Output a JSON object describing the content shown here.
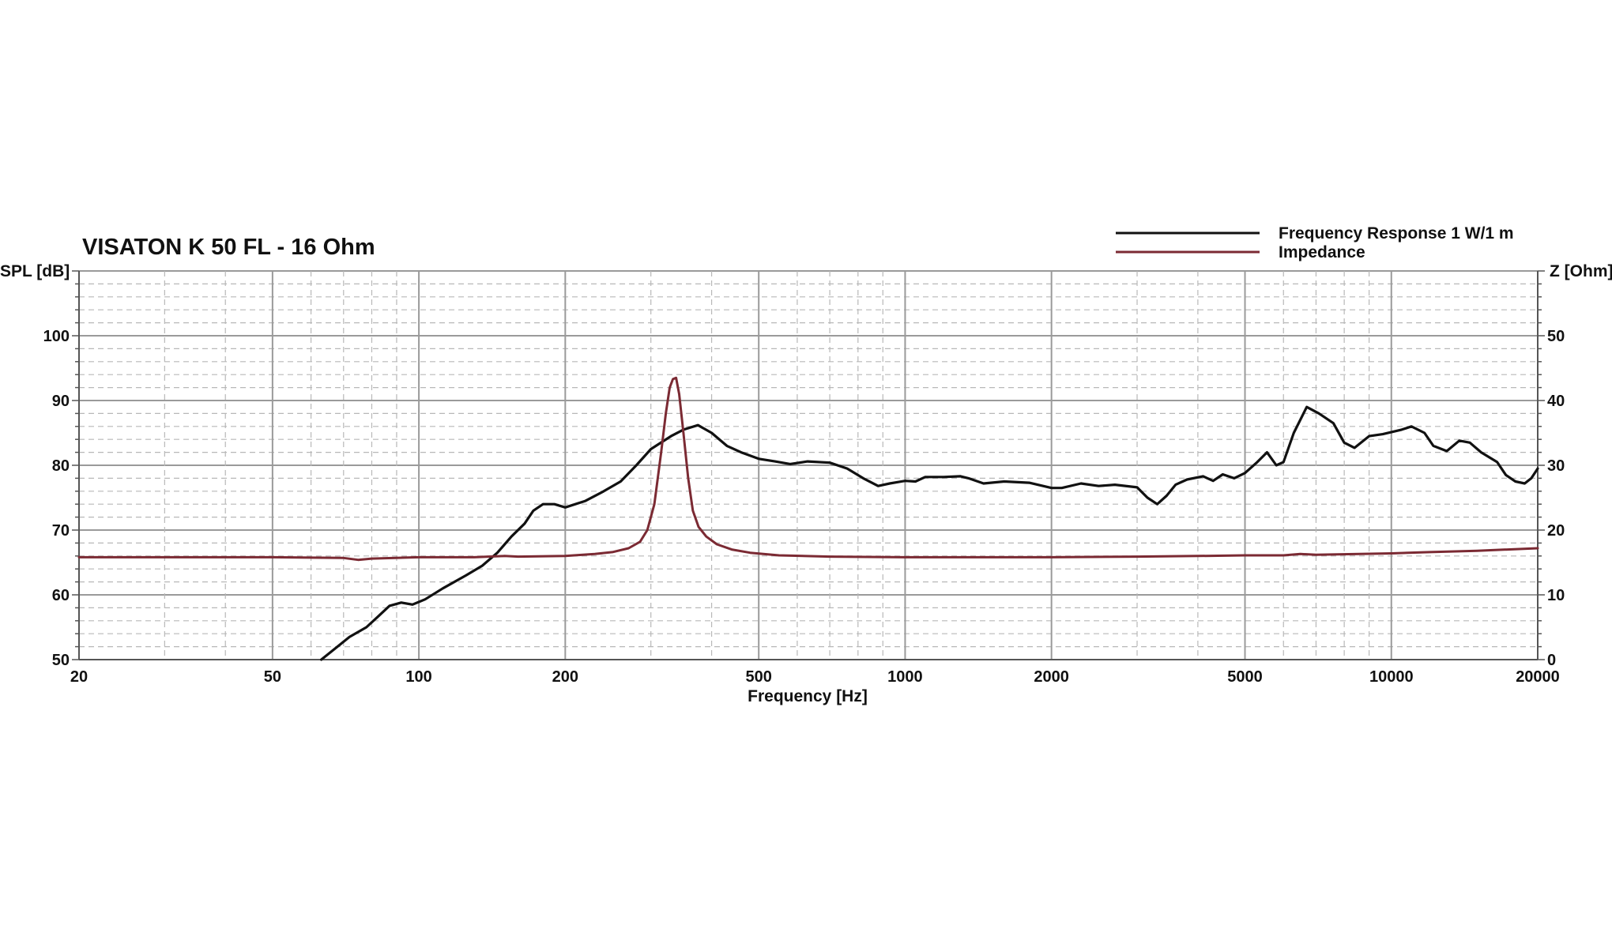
{
  "chart_data": {
    "type": "line",
    "title": "VISATON K 50 FL - 16 Ohm",
    "xlabel": "Frequency [Hz]",
    "ylabel_left": "SPL [dB]",
    "ylabel_right": "Z [Ohm]",
    "x_scale": "log",
    "xlim": [
      20,
      20000
    ],
    "ylim_left": [
      50,
      110
    ],
    "ylim_right": [
      0,
      60
    ],
    "x_ticks": [
      20,
      50,
      100,
      200,
      500,
      1000,
      2000,
      5000,
      10000,
      20000
    ],
    "x_tick_labels": [
      "20",
      "50",
      "100",
      "200",
      "500",
      "1000",
      "2000",
      "5000",
      "10000",
      "20000"
    ],
    "y_left_ticks": [
      50,
      60,
      70,
      80,
      90,
      100
    ],
    "y_left_tick_labels": [
      "50",
      "60",
      "70",
      "80",
      "90",
      "100"
    ],
    "y_right_ticks": [
      0,
      10,
      20,
      30,
      40,
      50
    ],
    "y_right_tick_labels": [
      "0",
      "10",
      "20",
      "30",
      "40",
      "50"
    ],
    "grid": true,
    "legend_position": "top-right",
    "series": [
      {
        "name": "Frequency Response 1 W/1 m",
        "axis": "left",
        "color": "#111111",
        "points": [
          [
            63,
            50
          ],
          [
            68,
            52
          ],
          [
            72,
            53.5
          ],
          [
            78,
            55
          ],
          [
            82,
            56.5
          ],
          [
            87,
            58.3
          ],
          [
            92,
            58.8
          ],
          [
            97,
            58.5
          ],
          [
            103,
            59.3
          ],
          [
            112,
            61
          ],
          [
            125,
            63
          ],
          [
            135,
            64.5
          ],
          [
            145,
            66.5
          ],
          [
            155,
            69
          ],
          [
            165,
            71
          ],
          [
            172,
            73
          ],
          [
            180,
            74
          ],
          [
            190,
            74
          ],
          [
            200,
            73.5
          ],
          [
            220,
            74.5
          ],
          [
            240,
            76
          ],
          [
            260,
            77.5
          ],
          [
            280,
            80
          ],
          [
            300,
            82.5
          ],
          [
            330,
            84.5
          ],
          [
            350,
            85.5
          ],
          [
            375,
            86.2
          ],
          [
            400,
            85
          ],
          [
            430,
            83
          ],
          [
            460,
            82
          ],
          [
            500,
            81
          ],
          [
            540,
            80.6
          ],
          [
            580,
            80.2
          ],
          [
            630,
            80.6
          ],
          [
            700,
            80.4
          ],
          [
            760,
            79.5
          ],
          [
            820,
            78
          ],
          [
            880,
            76.8
          ],
          [
            930,
            77.2
          ],
          [
            1000,
            77.6
          ],
          [
            1050,
            77.5
          ],
          [
            1100,
            78.2
          ],
          [
            1200,
            78.2
          ],
          [
            1300,
            78.3
          ],
          [
            1350,
            78
          ],
          [
            1450,
            77.2
          ],
          [
            1600,
            77.5
          ],
          [
            1800,
            77.3
          ],
          [
            2000,
            76.5
          ],
          [
            2100,
            76.5
          ],
          [
            2300,
            77.2
          ],
          [
            2500,
            76.8
          ],
          [
            2700,
            77
          ],
          [
            3000,
            76.6
          ],
          [
            3150,
            75
          ],
          [
            3300,
            74
          ],
          [
            3450,
            75.3
          ],
          [
            3600,
            77
          ],
          [
            3800,
            77.8
          ],
          [
            4100,
            78.3
          ],
          [
            4300,
            77.6
          ],
          [
            4500,
            78.6
          ],
          [
            4750,
            78
          ],
          [
            5000,
            78.8
          ],
          [
            5300,
            80.5
          ],
          [
            5550,
            82
          ],
          [
            5800,
            80
          ],
          [
            6000,
            80.5
          ],
          [
            6300,
            85
          ],
          [
            6700,
            89
          ],
          [
            7100,
            88
          ],
          [
            7600,
            86.5
          ],
          [
            8000,
            83.5
          ],
          [
            8400,
            82.7
          ],
          [
            9000,
            84.5
          ],
          [
            9600,
            84.8
          ],
          [
            10500,
            85.5
          ],
          [
            11000,
            86
          ],
          [
            11700,
            85
          ],
          [
            12200,
            83
          ],
          [
            13000,
            82.2
          ],
          [
            13800,
            83.8
          ],
          [
            14500,
            83.5
          ],
          [
            15300,
            82
          ],
          [
            16500,
            80.5
          ],
          [
            17200,
            78.5
          ],
          [
            18000,
            77.5
          ],
          [
            18800,
            77.2
          ],
          [
            19400,
            78
          ],
          [
            20000,
            79.5
          ]
        ]
      },
      {
        "name": "Impedance",
        "axis": "right",
        "color": "#7b2a33",
        "points": [
          [
            20,
            15.8
          ],
          [
            30,
            15.8
          ],
          [
            50,
            15.8
          ],
          [
            70,
            15.7
          ],
          [
            75,
            15.4
          ],
          [
            80,
            15.6
          ],
          [
            100,
            15.8
          ],
          [
            130,
            15.8
          ],
          [
            150,
            16
          ],
          [
            160,
            15.9
          ],
          [
            200,
            16
          ],
          [
            230,
            16.3
          ],
          [
            250,
            16.6
          ],
          [
            270,
            17.2
          ],
          [
            285,
            18.2
          ],
          [
            295,
            20
          ],
          [
            305,
            24
          ],
          [
            315,
            32
          ],
          [
            322,
            38
          ],
          [
            328,
            42
          ],
          [
            333,
            43.3
          ],
          [
            338,
            43.5
          ],
          [
            343,
            41
          ],
          [
            350,
            35
          ],
          [
            358,
            28
          ],
          [
            366,
            23
          ],
          [
            376,
            20.5
          ],
          [
            390,
            19
          ],
          [
            410,
            17.8
          ],
          [
            440,
            17
          ],
          [
            480,
            16.5
          ],
          [
            550,
            16.1
          ],
          [
            700,
            15.9
          ],
          [
            1000,
            15.8
          ],
          [
            1500,
            15.8
          ],
          [
            2000,
            15.8
          ],
          [
            3000,
            15.9
          ],
          [
            4000,
            16
          ],
          [
            5000,
            16.1
          ],
          [
            6000,
            16.1
          ],
          [
            6500,
            16.3
          ],
          [
            7000,
            16.2
          ],
          [
            10000,
            16.4
          ],
          [
            12000,
            16.6
          ],
          [
            15000,
            16.8
          ],
          [
            20000,
            17.2
          ]
        ]
      }
    ]
  }
}
